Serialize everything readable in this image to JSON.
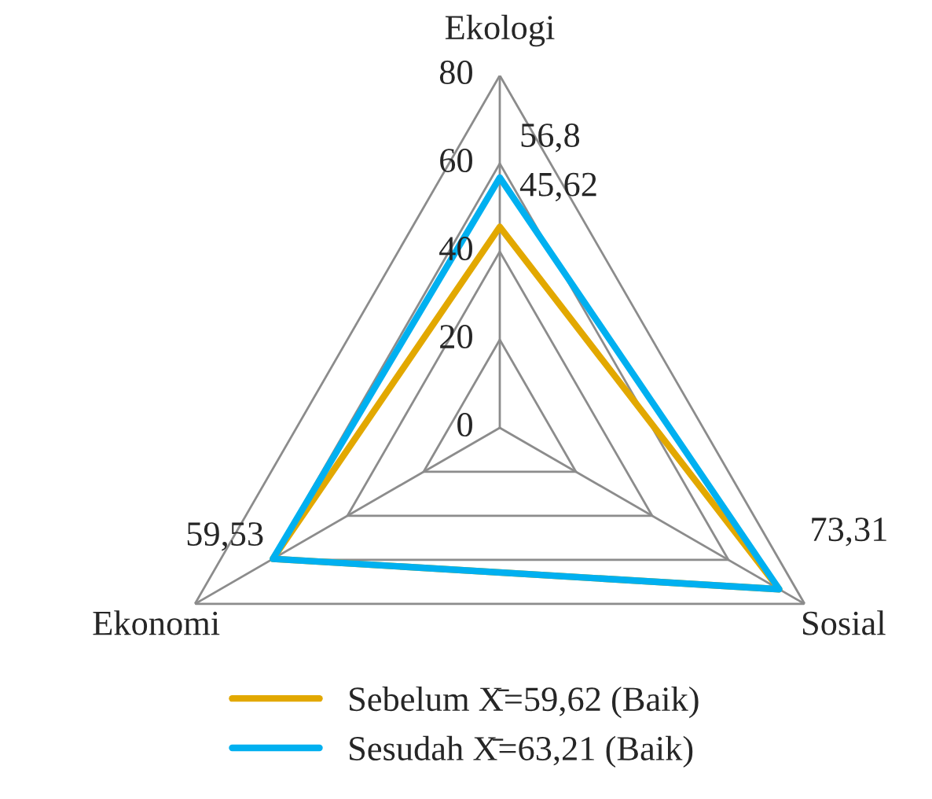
{
  "chart_data": {
    "type": "radar",
    "categories": [
      "Ekologi",
      "Sosial",
      "Ekonomi"
    ],
    "ylim": [
      0,
      80
    ],
    "yticks": [
      0,
      20,
      40,
      60,
      80
    ],
    "grid": true,
    "legend": "bottom",
    "line_style": "solid",
    "marker": "none",
    "series": [
      {
        "name": "Sebelum X̄=59,62 (Baik)",
        "color": "#e2a800",
        "values": [
          45.62,
          73.31,
          59.53
        ],
        "value_labels": [
          "45,62",
          null,
          null
        ]
      },
      {
        "name": "Sesudah X̄=63,21 (Baik)",
        "color": "#00b0f0",
        "values": [
          56.8,
          73.31,
          59.53
        ],
        "value_labels": [
          "56,8",
          "73,31",
          "59,53"
        ]
      }
    ]
  }
}
